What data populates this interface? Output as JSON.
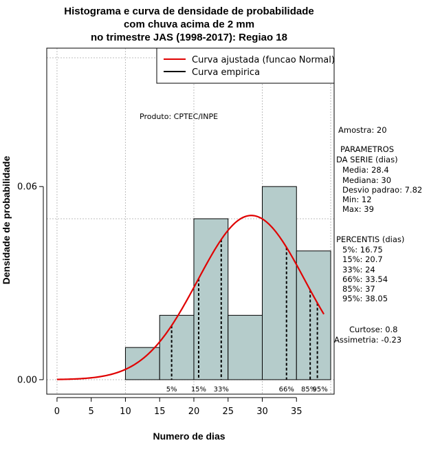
{
  "chart_data": {
    "type": "bar",
    "title_lines": [
      "Histograma e curva de densidade de probabilidade",
      "com chuva acima de 2 mm",
      "no trimestre JAS (1998-2017): Regiao 18"
    ],
    "xlabel": "Numero de dias",
    "ylabel": "Densidade de probabilidade",
    "xlim": [
      -1.5,
      40.5
    ],
    "ylim": [
      -0.0045,
      0.103
    ],
    "x_ticks": [
      0,
      5,
      10,
      15,
      20,
      25,
      30,
      35
    ],
    "x_tick_labels": [
      "0",
      "5",
      "10",
      "15",
      "20",
      "25",
      "30",
      "35"
    ],
    "y_ticks": [
      0.0,
      0.06
    ],
    "y_tick_labels": [
      "0.00",
      "0.06"
    ],
    "bins": [
      {
        "x0": 10,
        "x1": 15,
        "density": 0.01
      },
      {
        "x0": 15,
        "x1": 20,
        "density": 0.02
      },
      {
        "x0": 20,
        "x1": 25,
        "density": 0.05
      },
      {
        "x0": 25,
        "x1": 30,
        "density": 0.02
      },
      {
        "x0": 30,
        "x1": 35,
        "density": 0.06
      },
      {
        "x0": 35,
        "x1": 40,
        "density": 0.04
      }
    ],
    "grid_x": [
      0,
      10,
      20,
      30,
      40
    ],
    "grid_y": [
      0.0,
      0.05,
      0.1
    ],
    "normal_fit": {
      "mean": 28.4,
      "sd": 7.82,
      "x_from": 0,
      "x_to": 39
    },
    "percentile_lines": [
      {
        "label": "5%",
        "x": 16.75
      },
      {
        "label": "15%",
        "x": 20.7
      },
      {
        "label": "33%",
        "x": 24
      },
      {
        "label": "66%",
        "x": 33.54
      },
      {
        "label": "85%",
        "x": 37
      },
      {
        "label": "95%",
        "x": 38.05
      }
    ],
    "legend": [
      {
        "label": "Curva ajustada (funcao Normal)",
        "color": "#e00000"
      },
      {
        "label": "Curva empirica",
        "color": "#000000"
      }
    ],
    "legend_position": "top-right",
    "annotation": "Produto: CPTEC/INPE",
    "colors": {
      "bar_fill": "#b5cccb",
      "curve": "#e00000",
      "grid": "#bdbdbd"
    }
  },
  "side_panel": {
    "amostra": "Amostra: 20",
    "parametros_title_1": "PARAMETROS",
    "parametros_title_2": "DA SERIE (dias)",
    "media": "Media: 28.4",
    "mediana": "Mediana: 30",
    "desvio": "Desvio padrao: 7.82",
    "min": "Min: 12",
    "max": "Max: 39",
    "percentis_title": "PERCENTIS (dias)",
    "p5": "5%: 16.75",
    "p15": "15%: 20.7",
    "p33": "33%: 24",
    "p66": "66%: 33.54",
    "p85": "85%: 37",
    "p95": "95%: 38.05",
    "curtose": "Curtose: 0.8",
    "assimetria": "Assimetria: -0.23"
  }
}
